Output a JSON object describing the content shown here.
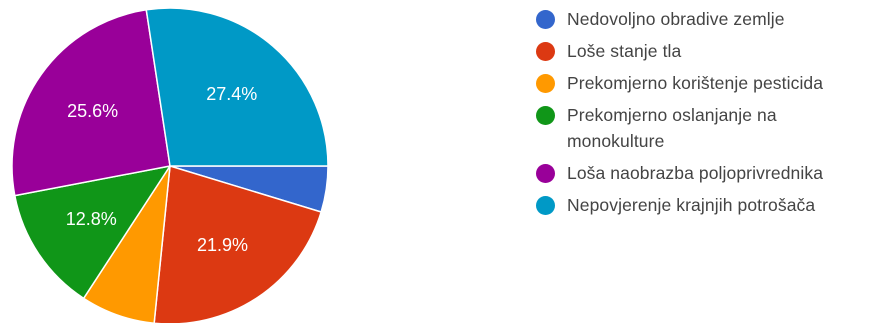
{
  "chart_data": {
    "type": "pie",
    "title": "",
    "start_angle_deg": 90,
    "direction": "clockwise",
    "legend_position": "right",
    "slices": [
      {
        "label": "Nedovoljno obradive zemlje",
        "value": 4.7,
        "color": "#3366cc",
        "display": ""
      },
      {
        "label": "Loše stanje tla",
        "value": 21.9,
        "color": "#dc3912",
        "display": "21.9%"
      },
      {
        "label": "Prekomjerno korištenje pesticida",
        "value": 7.6,
        "color": "#ff9900",
        "display": ""
      },
      {
        "label": "Prekomjerno oslanjanje na monokulture",
        "value": 12.8,
        "color": "#109618",
        "display": "12.8%"
      },
      {
        "label": "Loša naobrazba poljoprivrednika",
        "value": 25.6,
        "color": "#990099",
        "display": "25.6%"
      },
      {
        "label": "Nepovjerenje krajnjih potrošača",
        "value": 27.4,
        "color": "#0099c6",
        "display": "27.4%"
      }
    ]
  }
}
